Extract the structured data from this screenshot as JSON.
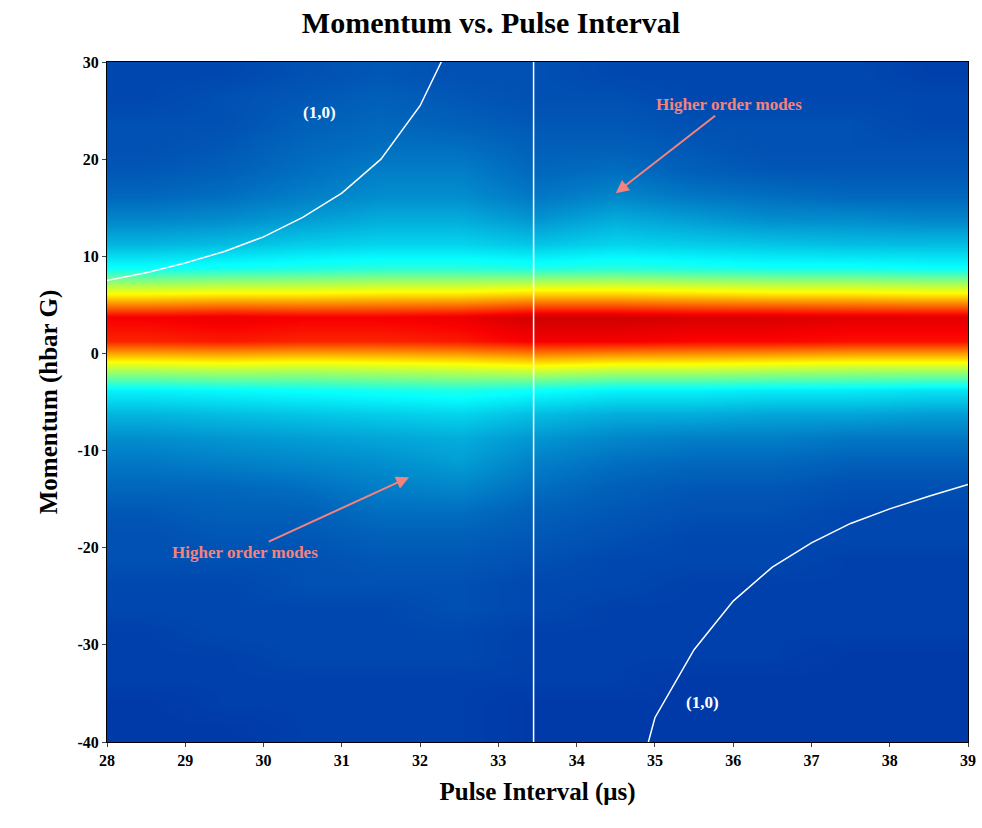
{
  "chart_data": {
    "type": "heatmap",
    "title": "Momentum vs. Pulse Interval",
    "x_label": "Pulse Interval (μs)",
    "y_label": "Momentum (hbar G)",
    "xlim": [
      28,
      39
    ],
    "ylim": [
      -40,
      30
    ],
    "xticks": [
      28,
      29,
      30,
      31,
      32,
      33,
      34,
      35,
      36,
      37,
      38,
      39
    ],
    "yticks": [
      -40,
      -30,
      -20,
      -10,
      0,
      10,
      20,
      30
    ],
    "x": [
      28.5,
      29.5,
      30.5,
      31.5,
      32.5,
      33.5,
      34.5,
      35.5,
      36.5,
      37.5,
      38.5
    ],
    "y": [
      -38.75,
      -36.25,
      -33.75,
      -31.25,
      -28.75,
      -26.25,
      -23.75,
      -21.25,
      -18.75,
      -16.25,
      -13.75,
      -11.25,
      -8.75,
      -6.25,
      -3.75,
      -1.25,
      1.25,
      3.75,
      6.25,
      8.75,
      11.25,
      13.75,
      16.25,
      18.75,
      21.25,
      23.75,
      26.25,
      28.75
    ],
    "z": [
      [
        12,
        12,
        13,
        13,
        13,
        12,
        12,
        12,
        12,
        12,
        12
      ],
      [
        12,
        13,
        13,
        13,
        13,
        12,
        12,
        12,
        12,
        12,
        12
      ],
      [
        13,
        13,
        13,
        13,
        13,
        13,
        13,
        12,
        12,
        12,
        12
      ],
      [
        13,
        13,
        14,
        14,
        14,
        13,
        13,
        13,
        13,
        12,
        12
      ],
      [
        13,
        14,
        14,
        14,
        14,
        13,
        13,
        13,
        13,
        13,
        13
      ],
      [
        14,
        14,
        14,
        14,
        15,
        14,
        13,
        13,
        13,
        13,
        13
      ],
      [
        14,
        14,
        15,
        15,
        15,
        14,
        14,
        13,
        13,
        13,
        13
      ],
      [
        15,
        15,
        15,
        16,
        16,
        15,
        14,
        14,
        14,
        13,
        13
      ],
      [
        15,
        16,
        16,
        17,
        17,
        16,
        15,
        14,
        14,
        14,
        14
      ],
      [
        16,
        17,
        17,
        19,
        19,
        17,
        16,
        15,
        15,
        14,
        14
      ],
      [
        18,
        18,
        19,
        21,
        22,
        19,
        17,
        16,
        16,
        15,
        15
      ],
      [
        20,
        21,
        22,
        23,
        25,
        21,
        19,
        18,
        18,
        17,
        17
      ],
      [
        23,
        24,
        25,
        26,
        27,
        24,
        22,
        21,
        21,
        20,
        20
      ],
      [
        28,
        29,
        30,
        31,
        32,
        29,
        27,
        27,
        26,
        26,
        25
      ],
      [
        36,
        37,
        38,
        39,
        40,
        38,
        36,
        36,
        35,
        35,
        34
      ],
      [
        58,
        59,
        58,
        59,
        60,
        62,
        60,
        60,
        59,
        58,
        58
      ],
      [
        84,
        85,
        84,
        84,
        85,
        88,
        88,
        87,
        87,
        86,
        86
      ],
      [
        88,
        89,
        88,
        88,
        89,
        92,
        92,
        91,
        91,
        90,
        90
      ],
      [
        62,
        63,
        63,
        64,
        64,
        66,
        66,
        65,
        64,
        64,
        63
      ],
      [
        38,
        39,
        40,
        41,
        41,
        40,
        41,
        40,
        39,
        39,
        38
      ],
      [
        28,
        29,
        31,
        32,
        32,
        30,
        32,
        31,
        30,
        29,
        29
      ],
      [
        22,
        23,
        25,
        27,
        27,
        24,
        27,
        25,
        23,
        23,
        22
      ],
      [
        18,
        19,
        21,
        23,
        23,
        20,
        22,
        20,
        19,
        18,
        18
      ],
      [
        16,
        17,
        19,
        21,
        21,
        18,
        19,
        17,
        16,
        16,
        16
      ],
      [
        15,
        16,
        18,
        19,
        19,
        17,
        17,
        16,
        15,
        15,
        15
      ],
      [
        15,
        15,
        17,
        18,
        17,
        16,
        16,
        15,
        15,
        15,
        14
      ],
      [
        14,
        15,
        16,
        17,
        16,
        15,
        15,
        14,
        14,
        14,
        14
      ],
      [
        14,
        14,
        15,
        16,
        15,
        15,
        14,
        14,
        14,
        14,
        13
      ]
    ],
    "zlim": [
      0,
      100
    ],
    "curves": [
      {
        "color": "#ffffff",
        "x": [
          28,
          28.5,
          29,
          29.5,
          30,
          30.5,
          31,
          31.5,
          32,
          32.3
        ],
        "y": [
          7.5,
          8.3,
          9.3,
          10.5,
          12,
          14,
          16.5,
          20,
          25.5,
          30.5
        ]
      },
      {
        "color": "#ffffff",
        "x": [
          34.9,
          35,
          35.5,
          36,
          36.5,
          37,
          37.5,
          38,
          38.5,
          39
        ],
        "y": [
          -40.5,
          -37.5,
          -30.5,
          -25.5,
          -22,
          -19.5,
          -17.5,
          -16,
          -14.7,
          -13.5
        ]
      },
      {
        "color": "#ffffff",
        "x": [
          33.45,
          33.45
        ],
        "y": [
          -40,
          30
        ]
      }
    ],
    "annotations": [
      {
        "text": "(1,0)",
        "x": 30.72,
        "y": 24.8,
        "color": "#ffffff"
      },
      {
        "text": "(1,0)",
        "x": 35.61,
        "y": -35.9,
        "color": "#ffffff"
      },
      {
        "text": "Higher order modes",
        "x": 34.5,
        "y": 16.5,
        "ax": 35.95,
        "ay": 25.6,
        "color": "#f4837d"
      },
      {
        "text": "Higher order modes",
        "x": 31.86,
        "y": -12.75,
        "ax": 29.76,
        "ay": -20.5,
        "color": "#f4837d"
      }
    ]
  }
}
